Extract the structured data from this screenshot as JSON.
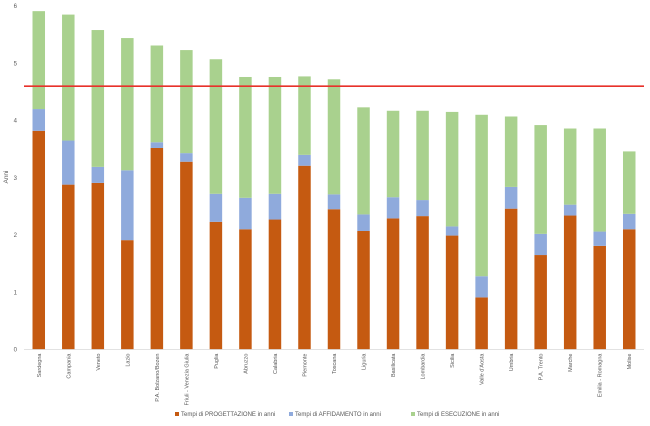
{
  "chart_data": {
    "type": "bar",
    "stacked": true,
    "ylabel": "Anni",
    "xlabel": "",
    "ylim": [
      0,
      6
    ],
    "yticks": [
      0,
      1,
      2,
      3,
      4,
      5,
      6
    ],
    "grid": false,
    "legend_position": "bottom",
    "reference_line": {
      "value": 4.6,
      "color": "#e8312a"
    },
    "categories": [
      "Sardegna",
      "Campania",
      "Veneto",
      "Lazio",
      "P.A. Bolzano/Bozen",
      "Friuli - Venezia Giulia",
      "Puglia",
      "Abruzzo",
      "Calabria",
      "Piemonte",
      "Toscana",
      "Liguria",
      "Basilicata",
      "Lombardia",
      "Sicilia",
      "Valle d'Aosta",
      "Umbria",
      "P.A. Trento",
      "Marche",
      "Emilia - Romagna",
      "Molise"
    ],
    "series": [
      {
        "name": "Tempi di PROGETTAZIONE in anni",
        "color": "#c55a11",
        "values": [
          3.82,
          2.88,
          2.91,
          1.91,
          3.52,
          3.28,
          2.23,
          2.1,
          2.27,
          3.21,
          2.45,
          2.07,
          2.29,
          2.33,
          1.99,
          0.91,
          2.46,
          1.65,
          2.34,
          1.81,
          2.1
        ]
      },
      {
        "name": "Tempi di AFFIDAMENTO in anni",
        "color": "#8faadc",
        "values": [
          0.38,
          0.77,
          0.28,
          1.22,
          0.1,
          0.15,
          0.49,
          0.55,
          0.45,
          0.19,
          0.26,
          0.29,
          0.37,
          0.28,
          0.16,
          0.37,
          0.38,
          0.37,
          0.19,
          0.25,
          0.27
        ]
      },
      {
        "name": "Tempi di ESECUZIONE in anni",
        "color": "#a9d18e",
        "values": [
          1.71,
          2.2,
          2.39,
          2.31,
          1.69,
          1.8,
          2.35,
          2.11,
          2.04,
          1.37,
          2.01,
          1.87,
          1.51,
          1.56,
          2.0,
          2.82,
          1.23,
          1.9,
          1.33,
          1.8,
          1.09
        ]
      }
    ]
  }
}
